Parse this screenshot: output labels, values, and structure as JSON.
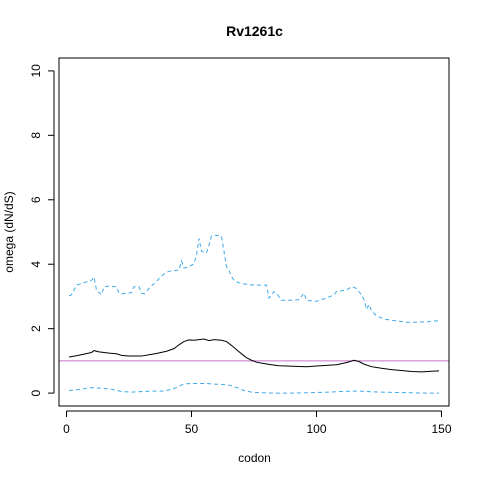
{
  "chart_data": {
    "type": "line",
    "title": "Rv1261c",
    "xlabel": "codon",
    "ylabel": "omega (dN/dS)",
    "xlim": [
      -3,
      153
    ],
    "ylim": [
      -0.4,
      10.4
    ],
    "x_ticks": [
      0,
      50,
      100,
      150
    ],
    "y_ticks": [
      0,
      2,
      4,
      6,
      8,
      10
    ],
    "grid": false,
    "legend": "none",
    "reference_line": {
      "y": 1,
      "color": "#c870c8"
    },
    "series": [
      {
        "role": "estimate",
        "color": "#000000",
        "style": "solid",
        "points": [
          [
            1,
            1.12
          ],
          [
            4,
            1.16
          ],
          [
            7,
            1.21
          ],
          [
            10,
            1.26
          ],
          [
            11,
            1.32
          ],
          [
            13,
            1.28
          ],
          [
            17,
            1.24
          ],
          [
            20,
            1.22
          ],
          [
            22,
            1.17
          ],
          [
            25,
            1.15
          ],
          [
            30,
            1.15
          ],
          [
            33,
            1.19
          ],
          [
            36,
            1.23
          ],
          [
            40,
            1.3
          ],
          [
            43,
            1.38
          ],
          [
            45,
            1.5
          ],
          [
            47,
            1.6
          ],
          [
            49,
            1.65
          ],
          [
            51,
            1.64
          ],
          [
            53,
            1.66
          ],
          [
            55,
            1.68
          ],
          [
            57,
            1.63
          ],
          [
            59,
            1.66
          ],
          [
            62,
            1.64
          ],
          [
            64,
            1.6
          ],
          [
            66,
            1.48
          ],
          [
            68,
            1.35
          ],
          [
            70,
            1.22
          ],
          [
            72,
            1.1
          ],
          [
            74,
            1.02
          ],
          [
            76,
            0.96
          ],
          [
            78,
            0.93
          ],
          [
            82,
            0.88
          ],
          [
            85,
            0.85
          ],
          [
            88,
            0.84
          ],
          [
            92,
            0.83
          ],
          [
            96,
            0.82
          ],
          [
            100,
            0.84
          ],
          [
            104,
            0.86
          ],
          [
            108,
            0.88
          ],
          [
            111,
            0.93
          ],
          [
            113,
            0.97
          ],
          [
            115,
            1.02
          ],
          [
            117,
            0.98
          ],
          [
            119,
            0.9
          ],
          [
            122,
            0.82
          ],
          [
            126,
            0.77
          ],
          [
            130,
            0.73
          ],
          [
            134,
            0.7
          ],
          [
            138,
            0.67
          ],
          [
            142,
            0.66
          ],
          [
            146,
            0.68
          ],
          [
            149,
            0.69
          ]
        ]
      },
      {
        "role": "upper bound",
        "color": "#3fa9e8",
        "style": "dashed",
        "points": [
          [
            1,
            3.02
          ],
          [
            2,
            3.05
          ],
          [
            3,
            3.2
          ],
          [
            4,
            3.35
          ],
          [
            6,
            3.4
          ],
          [
            8,
            3.45
          ],
          [
            10,
            3.5
          ],
          [
            11,
            3.6
          ],
          [
            12,
            3.2
          ],
          [
            14,
            3.05
          ],
          [
            15,
            3.3
          ],
          [
            17,
            3.32
          ],
          [
            20,
            3.3
          ],
          [
            21,
            3.1
          ],
          [
            22,
            3.08
          ],
          [
            24,
            3.1
          ],
          [
            26,
            3.12
          ],
          [
            27,
            3.3
          ],
          [
            29,
            3.3
          ],
          [
            30,
            3.1
          ],
          [
            31,
            3.08
          ],
          [
            33,
            3.25
          ],
          [
            35,
            3.4
          ],
          [
            37,
            3.55
          ],
          [
            39,
            3.7
          ],
          [
            41,
            3.78
          ],
          [
            43,
            3.8
          ],
          [
            45,
            3.82
          ],
          [
            46,
            4.1
          ],
          [
            47,
            3.88
          ],
          [
            49,
            3.92
          ],
          [
            51,
            4.02
          ],
          [
            52,
            4.28
          ],
          [
            53,
            4.8
          ],
          [
            54,
            4.4
          ],
          [
            56,
            4.35
          ],
          [
            57,
            4.6
          ],
          [
            58,
            4.88
          ],
          [
            60,
            4.9
          ],
          [
            62,
            4.86
          ],
          [
            63,
            4.4
          ],
          [
            64,
            3.92
          ],
          [
            65,
            3.8
          ],
          [
            66,
            3.62
          ],
          [
            67,
            3.5
          ],
          [
            69,
            3.42
          ],
          [
            72,
            3.38
          ],
          [
            75,
            3.35
          ],
          [
            80,
            3.35
          ],
          [
            81,
            2.95
          ],
          [
            83,
            3.15
          ],
          [
            84,
            3.1
          ],
          [
            86,
            2.88
          ],
          [
            90,
            2.88
          ],
          [
            93,
            2.9
          ],
          [
            95,
            3.1
          ],
          [
            96,
            2.88
          ],
          [
            100,
            2.85
          ],
          [
            104,
            2.95
          ],
          [
            107,
            3.05
          ],
          [
            108,
            3.15
          ],
          [
            112,
            3.2
          ],
          [
            114,
            3.3
          ],
          [
            116,
            3.25
          ],
          [
            118,
            3.05
          ],
          [
            119,
            2.9
          ],
          [
            120,
            2.6
          ],
          [
            121,
            2.75
          ],
          [
            122,
            2.55
          ],
          [
            124,
            2.4
          ],
          [
            127,
            2.3
          ],
          [
            131,
            2.25
          ],
          [
            136,
            2.2
          ],
          [
            141,
            2.2
          ],
          [
            145,
            2.22
          ],
          [
            149,
            2.25
          ]
        ]
      },
      {
        "role": "lower bound",
        "color": "#3fa9e8",
        "style": "dashed",
        "points": [
          [
            1,
            0.08
          ],
          [
            5,
            0.11
          ],
          [
            9,
            0.16
          ],
          [
            11,
            0.17
          ],
          [
            14,
            0.15
          ],
          [
            18,
            0.12
          ],
          [
            22,
            0.05
          ],
          [
            26,
            0.03
          ],
          [
            30,
            0.05
          ],
          [
            34,
            0.06
          ],
          [
            38,
            0.06
          ],
          [
            41,
            0.1
          ],
          [
            43,
            0.14
          ],
          [
            45,
            0.22
          ],
          [
            47,
            0.28
          ],
          [
            50,
            0.3
          ],
          [
            53,
            0.3
          ],
          [
            56,
            0.3
          ],
          [
            59,
            0.28
          ],
          [
            62,
            0.27
          ],
          [
            65,
            0.25
          ],
          [
            67,
            0.2
          ],
          [
            69,
            0.15
          ],
          [
            71,
            0.08
          ],
          [
            74,
            0.03
          ],
          [
            78,
            0.01
          ],
          [
            84,
            0.0
          ],
          [
            90,
            0.0
          ],
          [
            96,
            0.01
          ],
          [
            100,
            0.02
          ],
          [
            105,
            0.03
          ],
          [
            110,
            0.05
          ],
          [
            114,
            0.06
          ],
          [
            118,
            0.06
          ],
          [
            122,
            0.04
          ],
          [
            126,
            0.03
          ],
          [
            132,
            0.02
          ],
          [
            138,
            0.01
          ],
          [
            144,
            0.0
          ],
          [
            149,
            0.0
          ]
        ]
      }
    ]
  }
}
